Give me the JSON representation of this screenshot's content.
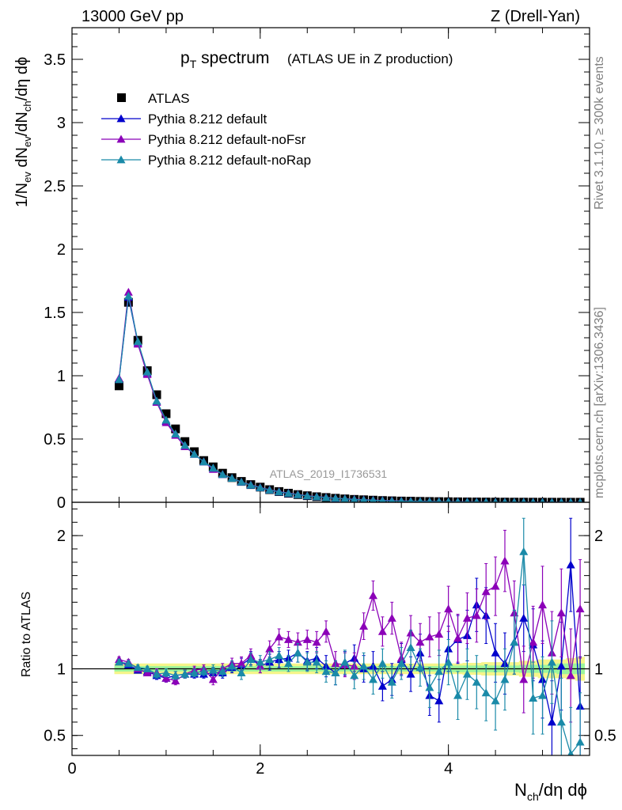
{
  "header": {
    "energy_label": "13000 GeV pp",
    "process_label": "Z (Drell-Yan)"
  },
  "side_labels": {
    "rivet": "Rivet 3.1.10, ≥ 300k events",
    "mcplots": "mcplots.cern.ch [arXiv:1306.3436]"
  },
  "chart_data": [
    {
      "type": "scatter",
      "panel": "main",
      "title_main": "p",
      "title_sub": "T",
      "title_rest": " spectrum",
      "title_paren": "(ATLAS UE in Z production)",
      "analysis_label": "ATLAS_2019_I1736531",
      "xlabel_main": "N",
      "xlabel_sub": "ch",
      "xlabel_rest": "/dη dϕ",
      "ylabel": "1/Nₑᵥ dNₑᵥ/dNᶜʰ/dη dϕ",
      "ylabel_parts": [
        "1/N",
        "ev",
        " dN",
        "ev",
        "/dN",
        "ch",
        "/dη dϕ"
      ],
      "xlim": [
        0,
        5.5
      ],
      "ylim": [
        0,
        3.75
      ],
      "x_ticks": [
        "0",
        "2",
        "4"
      ],
      "y_ticks": [
        "0",
        "0.5",
        "1",
        "1.5",
        "2",
        "2.5",
        "3",
        "3.5"
      ],
      "x": [
        0.5,
        0.6,
        0.7,
        0.8,
        0.9,
        1.0,
        1.1,
        1.2,
        1.3,
        1.4,
        1.5,
        1.6,
        1.7,
        1.8,
        1.9,
        2.0,
        2.1,
        2.2,
        2.3,
        2.4,
        2.5,
        2.6,
        2.7,
        2.8,
        2.9,
        3.0,
        3.1,
        3.2,
        3.3,
        3.4,
        3.5,
        3.6,
        3.7,
        3.8,
        3.9,
        4.0,
        4.1,
        4.2,
        4.3,
        4.4,
        4.5,
        4.6,
        4.7,
        4.8,
        4.9,
        5.0,
        5.1,
        5.2,
        5.3,
        5.4
      ],
      "series": [
        {
          "name": "ATLAS",
          "color": "#000000",
          "marker": "square",
          "values": [
            0.92,
            1.58,
            1.28,
            1.04,
            0.85,
            0.7,
            0.58,
            0.48,
            0.4,
            0.33,
            0.28,
            0.23,
            0.195,
            0.165,
            0.14,
            0.12,
            0.1,
            0.085,
            0.072,
            0.061,
            0.052,
            0.044,
            0.038,
            0.032,
            0.027,
            0.023,
            0.02,
            0.017,
            0.014,
            0.012,
            0.01,
            0.009,
            0.0075,
            0.0065,
            0.0055,
            0.0047,
            0.004,
            0.0034,
            0.0029,
            0.0025,
            0.0021,
            0.0018,
            0.0015,
            0.0013,
            0.0011,
            0.0009,
            0.0008,
            0.0007,
            0.0006,
            0.0005
          ]
        },
        {
          "name": "Pythia 8.212 default",
          "color": "#0000cc",
          "marker": "triangle",
          "values": [
            0.97,
            1.62,
            1.26,
            1.02,
            0.8,
            0.64,
            0.54,
            0.45,
            0.38,
            0.32,
            0.27,
            0.22,
            0.19,
            0.16,
            0.135,
            0.115,
            0.096,
            0.082,
            0.07,
            0.06,
            0.05,
            0.043,
            0.037,
            0.031,
            0.027,
            0.023,
            0.019,
            0.016,
            0.014,
            0.012,
            0.01,
            0.0085,
            0.0072,
            0.0062,
            0.0053,
            0.0045,
            0.0039,
            0.0033,
            0.0028,
            0.0024,
            0.002,
            0.0017,
            0.0015,
            0.0013,
            0.0011,
            0.0009,
            0.0008,
            0.0007,
            0.0006,
            0.0005
          ]
        },
        {
          "name": "Pythia 8.212 default-noFsr",
          "color": "#8b00b8",
          "marker": "triangle",
          "values": [
            0.98,
            1.66,
            1.25,
            1.01,
            0.79,
            0.63,
            0.53,
            0.44,
            0.38,
            0.32,
            0.26,
            0.22,
            0.19,
            0.16,
            0.138,
            0.118,
            0.099,
            0.085,
            0.073,
            0.062,
            0.052,
            0.045,
            0.039,
            0.033,
            0.028,
            0.024,
            0.021,
            0.018,
            0.015,
            0.013,
            0.011,
            0.0095,
            0.008,
            0.007,
            0.006,
            0.005,
            0.0043,
            0.0037,
            0.0032,
            0.0027,
            0.0023,
            0.002,
            0.0017,
            0.0015,
            0.0013,
            0.0011,
            0.0009,
            0.0008,
            0.0007,
            0.0006
          ]
        },
        {
          "name": "Pythia 8.212 default-noRap",
          "color": "#1a8aa8",
          "marker": "triangle",
          "values": [
            0.97,
            1.63,
            1.27,
            1.03,
            0.8,
            0.65,
            0.54,
            0.45,
            0.38,
            0.32,
            0.27,
            0.22,
            0.19,
            0.16,
            0.136,
            0.116,
            0.097,
            0.083,
            0.071,
            0.06,
            0.051,
            0.044,
            0.037,
            0.032,
            0.027,
            0.022,
            0.019,
            0.016,
            0.013,
            0.011,
            0.0095,
            0.0082,
            0.007,
            0.006,
            0.0052,
            0.0044,
            0.0038,
            0.0032,
            0.0027,
            0.0023,
            0.0019,
            0.0016,
            0.0014,
            0.0012,
            0.001,
            0.0009,
            0.0008,
            0.0007,
            0.0006,
            0.0005
          ]
        }
      ]
    },
    {
      "type": "scatter",
      "panel": "ratio",
      "ylabel": "Ratio to ATLAS",
      "xlim": [
        0,
        5.5
      ],
      "ylim": [
        0.35,
        2.25
      ],
      "y_ticks": [
        "0.5",
        "1",
        "2"
      ],
      "x": [
        0.5,
        0.6,
        0.7,
        0.8,
        0.9,
        1.0,
        1.1,
        1.2,
        1.3,
        1.4,
        1.5,
        1.6,
        1.7,
        1.8,
        1.9,
        2.0,
        2.1,
        2.2,
        2.3,
        2.4,
        2.5,
        2.6,
        2.7,
        2.8,
        2.9,
        3.0,
        3.1,
        3.2,
        3.3,
        3.4,
        3.5,
        3.6,
        3.7,
        3.8,
        3.9,
        4.0,
        4.1,
        4.2,
        4.3,
        4.4,
        4.5,
        4.6,
        4.7,
        4.8,
        4.9,
        5.0,
        5.1,
        5.2,
        5.3,
        5.4
      ],
      "band_inner_halfwidth": [
        0.02,
        0.02,
        0.02,
        0.02,
        0.02,
        0.02,
        0.02,
        0.02,
        0.02,
        0.02,
        0.02,
        0.02,
        0.02,
        0.02,
        0.02,
        0.02,
        0.02,
        0.02,
        0.02,
        0.02,
        0.02,
        0.02,
        0.02,
        0.02,
        0.02,
        0.02,
        0.02,
        0.02,
        0.02,
        0.02,
        0.02,
        0.02,
        0.02,
        0.02,
        0.02,
        0.025,
        0.025,
        0.025,
        0.025,
        0.025,
        0.025,
        0.025,
        0.025,
        0.03,
        0.03,
        0.03,
        0.03,
        0.04,
        0.04,
        0.04
      ],
      "band_outer_halfwidth": [
        0.04,
        0.04,
        0.04,
        0.04,
        0.04,
        0.04,
        0.04,
        0.04,
        0.04,
        0.04,
        0.04,
        0.04,
        0.04,
        0.04,
        0.04,
        0.04,
        0.04,
        0.04,
        0.04,
        0.04,
        0.04,
        0.04,
        0.04,
        0.04,
        0.04,
        0.04,
        0.04,
        0.04,
        0.04,
        0.04,
        0.04,
        0.04,
        0.04,
        0.04,
        0.04,
        0.04,
        0.04,
        0.045,
        0.045,
        0.05,
        0.05,
        0.05,
        0.05,
        0.06,
        0.06,
        0.07,
        0.07,
        0.07,
        0.08,
        0.09
      ],
      "series": [
        {
          "name": "Pythia 8.212 default",
          "color": "#0000cc",
          "values": [
            1.05,
            1.03,
            0.99,
            0.98,
            0.95,
            0.93,
            0.95,
            0.96,
            0.96,
            0.96,
            0.97,
            0.97,
            1.01,
            1.03,
            1.08,
            1.02,
            1.05,
            1.07,
            1.08,
            1.12,
            1.06,
            1.08,
            1.02,
            0.97,
            1.04,
            1.08,
            1.0,
            1.02,
            0.87,
            0.92,
            1.07,
            0.96,
            1.12,
            0.8,
            0.76,
            1.15,
            1.22,
            1.25,
            1.48,
            1.4,
            1.12,
            1.04,
            1.2,
            1.38,
            1.18,
            0.92,
            0.6,
            1.02,
            1.78,
            0.72
          ],
          "errors": [
            0.02,
            0.02,
            0.02,
            0.02,
            0.03,
            0.03,
            0.03,
            0.03,
            0.03,
            0.03,
            0.04,
            0.04,
            0.04,
            0.05,
            0.05,
            0.05,
            0.06,
            0.06,
            0.06,
            0.07,
            0.07,
            0.08,
            0.08,
            0.09,
            0.09,
            0.1,
            0.1,
            0.11,
            0.11,
            0.12,
            0.12,
            0.13,
            0.14,
            0.15,
            0.16,
            0.17,
            0.18,
            0.19,
            0.2,
            0.21,
            0.22,
            0.23,
            0.24,
            0.25,
            0.27,
            0.29,
            0.31,
            0.33,
            0.35,
            0.37
          ]
        },
        {
          "name": "Pythia 8.212 default-noFsr",
          "color": "#8b00b8",
          "values": [
            1.07,
            1.05,
            1.0,
            0.97,
            0.97,
            0.93,
            0.91,
            0.96,
            0.99,
            1.0,
            0.92,
            1.0,
            1.04,
            1.04,
            1.1,
            1.02,
            1.15,
            1.24,
            1.22,
            1.2,
            1.22,
            1.2,
            1.28,
            1.04,
            1.03,
            1.02,
            1.32,
            1.55,
            1.28,
            1.38,
            1.08,
            1.27,
            1.2,
            1.24,
            1.26,
            1.45,
            1.23,
            1.38,
            1.4,
            1.58,
            1.62,
            1.81,
            1.42,
            0.92,
            1.2,
            1.48,
            1.12,
            1.42,
            0.95,
            1.45
          ],
          "errors": [
            0.02,
            0.02,
            0.02,
            0.02,
            0.03,
            0.03,
            0.03,
            0.03,
            0.03,
            0.03,
            0.04,
            0.04,
            0.04,
            0.05,
            0.05,
            0.05,
            0.06,
            0.06,
            0.06,
            0.07,
            0.07,
            0.08,
            0.08,
            0.09,
            0.09,
            0.1,
            0.1,
            0.11,
            0.11,
            0.12,
            0.12,
            0.13,
            0.14,
            0.15,
            0.16,
            0.17,
            0.18,
            0.19,
            0.2,
            0.21,
            0.22,
            0.23,
            0.24,
            0.25,
            0.27,
            0.29,
            0.31,
            0.33,
            0.35,
            0.37
          ]
        },
        {
          "name": "Pythia 8.212 default-noRap",
          "color": "#1a8aa8",
          "values": [
            1.05,
            1.04,
            1.01,
            1.0,
            0.96,
            0.97,
            0.95,
            0.96,
            0.97,
            0.98,
            0.99,
            0.98,
            1.02,
            0.97,
            1.07,
            1.05,
            1.07,
            1.1,
            1.04,
            1.12,
            1.05,
            1.05,
            0.98,
            0.97,
            1.05,
            0.95,
            1.02,
            0.92,
            1.04,
            0.9,
            1.04,
            1.16,
            1.01,
            0.86,
            0.98,
            1.05,
            0.8,
            0.96,
            0.9,
            0.82,
            0.76,
            0.92,
            1.2,
            1.88,
            0.78,
            0.8,
            1.05,
            0.6,
            0.36,
            0.45
          ],
          "errors": [
            0.02,
            0.02,
            0.02,
            0.02,
            0.03,
            0.03,
            0.03,
            0.03,
            0.03,
            0.03,
            0.04,
            0.04,
            0.04,
            0.05,
            0.05,
            0.05,
            0.06,
            0.06,
            0.06,
            0.07,
            0.07,
            0.08,
            0.08,
            0.09,
            0.09,
            0.1,
            0.1,
            0.11,
            0.11,
            0.12,
            0.12,
            0.13,
            0.14,
            0.15,
            0.16,
            0.17,
            0.18,
            0.19,
            0.2,
            0.21,
            0.22,
            0.23,
            0.24,
            0.25,
            0.27,
            0.29,
            0.31,
            0.33,
            0.35,
            0.37
          ]
        }
      ]
    }
  ],
  "legend": [
    {
      "label": "ATLAS",
      "color": "#000000",
      "marker": "square"
    },
    {
      "label": "Pythia 8.212 default",
      "color": "#0000cc",
      "marker": "triangle"
    },
    {
      "label": "Pythia 8.212 default-noFsr",
      "color": "#8b00b8",
      "marker": "triangle"
    },
    {
      "label": "Pythia 8.212 default-noRap",
      "color": "#1a8aa8",
      "marker": "triangle"
    }
  ]
}
